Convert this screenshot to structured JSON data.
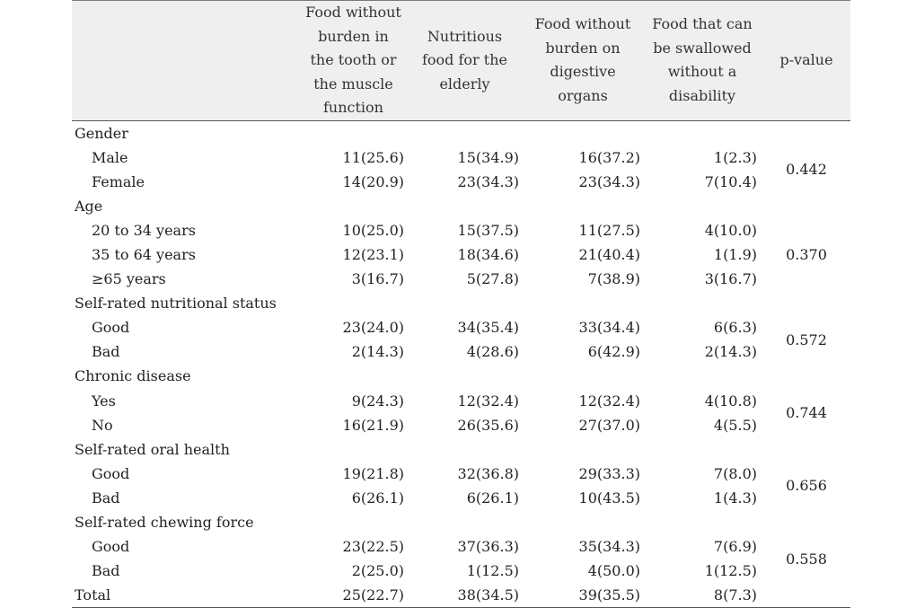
{
  "headers": [
    "",
    "Food without burden in the tooth or the muscle function",
    "Nutritious food for the elderly",
    "Food without burden on digestive organs",
    "Food that can be swallowed without a disability",
    "p-value"
  ],
  "groups": [
    {
      "label": "Gender",
      "p": "0.442",
      "rows": [
        {
          "label": "Male",
          "values": [
            "11(25.6)",
            "15(34.9)",
            "16(37.2)",
            "1(2.3)"
          ]
        },
        {
          "label": "Female",
          "values": [
            "14(20.9)",
            "23(34.3)",
            "23(34.3)",
            "7(10.4)"
          ]
        }
      ]
    },
    {
      "label": "Age",
      "p": "0.370",
      "rows": [
        {
          "label": "20 to 34 years",
          "values": [
            "10(25.0)",
            "15(37.5)",
            "11(27.5)",
            "4(10.0)"
          ]
        },
        {
          "label": "35 to 64 years",
          "values": [
            "12(23.1)",
            "18(34.6)",
            "21(40.4)",
            "1(1.9)"
          ]
        },
        {
          "label": "≥65 years",
          "values": [
            "3(16.7)",
            "5(27.8)",
            "7(38.9)",
            "3(16.7)"
          ]
        }
      ]
    },
    {
      "label": "Self-rated nutritional status",
      "p": "0.572",
      "rows": [
        {
          "label": "Good",
          "values": [
            "23(24.0)",
            "34(35.4)",
            "33(34.4)",
            "6(6.3)"
          ]
        },
        {
          "label": "Bad",
          "values": [
            "2(14.3)",
            "4(28.6)",
            "6(42.9)",
            "2(14.3)"
          ]
        }
      ]
    },
    {
      "label": "Chronic disease",
      "p": "0.744",
      "rows": [
        {
          "label": "Yes",
          "values": [
            "9(24.3)",
            "12(32.4)",
            "12(32.4)",
            "4(10.8)"
          ]
        },
        {
          "label": "No",
          "values": [
            "16(21.9)",
            "26(35.6)",
            "27(37.0)",
            "4(5.5)"
          ]
        }
      ]
    },
    {
      "label": "Self-rated oral health",
      "p": "0.656",
      "rows": [
        {
          "label": "Good",
          "values": [
            "19(21.8)",
            "32(36.8)",
            "29(33.3)",
            "7(8.0)"
          ]
        },
        {
          "label": "Bad",
          "values": [
            "6(26.1)",
            "6(26.1)",
            "10(43.5)",
            "1(4.3)"
          ]
        }
      ]
    },
    {
      "label": "Self-rated chewing force",
      "p": "0.558",
      "rows": [
        {
          "label": "Good",
          "values": [
            "23(22.5)",
            "37(36.3)",
            "35(34.3)",
            "7(6.9)"
          ]
        },
        {
          "label": "Bad",
          "values": [
            "2(25.0)",
            "1(12.5)",
            "4(50.0)",
            "1(12.5)"
          ]
        }
      ]
    }
  ],
  "total": {
    "label": "Total",
    "values": [
      "25(22.7)",
      "38(34.5)",
      "39(35.5)",
      "8(7.3)"
    ]
  }
}
